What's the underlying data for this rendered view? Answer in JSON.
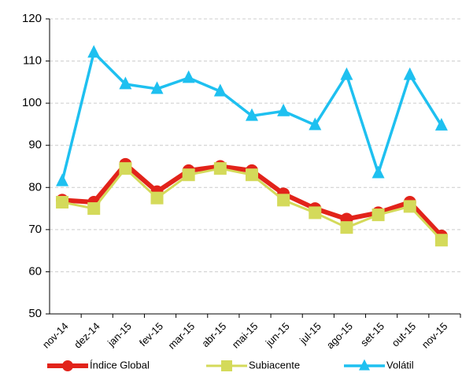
{
  "chart_data": {
    "type": "line",
    "categories": [
      "nov-14",
      "dez-14",
      "jan-15",
      "fev-15",
      "mar-15",
      "abr-15",
      "mai-15",
      "jun-15",
      "jul-15",
      "ago-15",
      "set-15",
      "out-15",
      "nov-15"
    ],
    "series": [
      {
        "name": "Índice Global",
        "color": "#e2231a",
        "marker": "circle",
        "values": [
          77,
          76.5,
          85.5,
          79,
          84,
          85,
          84,
          78.5,
          75,
          72.5,
          74,
          76.5,
          68.5
        ]
      },
      {
        "name": "Subiacente",
        "color": "#d4da5a",
        "marker": "square",
        "values": [
          76.5,
          75,
          84.5,
          77.5,
          83,
          84.5,
          83,
          77,
          74,
          70.5,
          73.5,
          75.5,
          67.5
        ]
      },
      {
        "name": "Volátil",
        "color": "#1ec0f0",
        "marker": "triangle",
        "values": [
          81.5,
          112,
          104.5,
          103.4,
          106,
          102.8,
          97,
          98.1,
          94.8,
          106.7,
          83.4,
          106.7,
          94.7
        ]
      }
    ],
    "ylim": [
      50,
      120
    ],
    "yticks": [
      50,
      60,
      70,
      80,
      90,
      100,
      110,
      120
    ],
    "grid": true,
    "legend": "bottom"
  }
}
